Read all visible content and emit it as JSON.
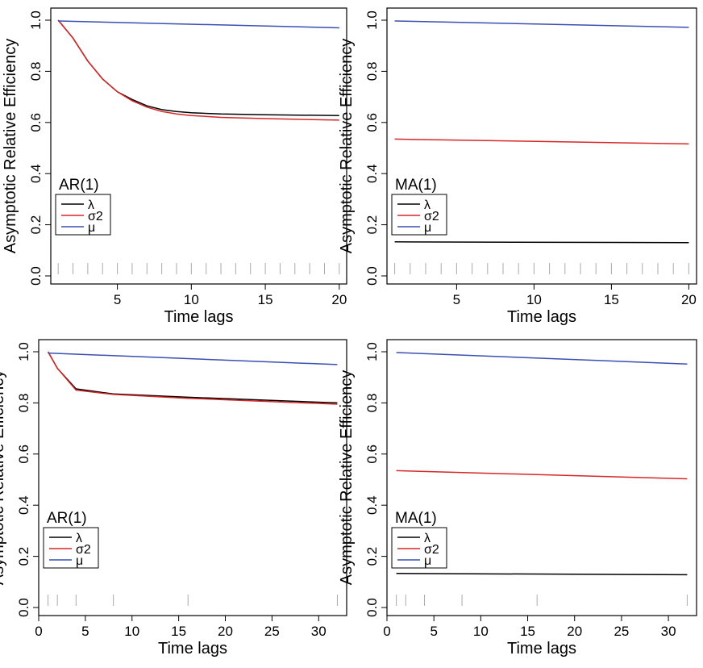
{
  "chart_data": [
    {
      "type": "line",
      "panel_label": "AR(1)",
      "xlabel": "Time lags",
      "ylabel": "Asymptotic Relative Efficiency",
      "xlim": [
        0.5,
        20.5
      ],
      "ylim": [
        0,
        1
      ],
      "xticks": [
        5,
        10,
        15,
        20
      ],
      "yticks": [
        0.0,
        0.2,
        0.4,
        0.6,
        0.8,
        1.0
      ],
      "ytick_labels": [
        "0.0",
        "0.2",
        "0.4",
        "0.6",
        "0.8",
        "1.0"
      ],
      "legend_position": "left",
      "rug": [
        1,
        2,
        3,
        4,
        5,
        6,
        7,
        8,
        9,
        10,
        11,
        12,
        13,
        14,
        15,
        16,
        17,
        18,
        19,
        20
      ],
      "series": [
        {
          "name": "λ",
          "color": "#000000",
          "x": [
            1,
            2,
            3,
            4,
            5,
            6,
            7,
            8,
            9,
            10,
            12,
            15,
            20
          ],
          "y": [
            1.0,
            0.93,
            0.84,
            0.77,
            0.72,
            0.69,
            0.665,
            0.65,
            0.643,
            0.638,
            0.633,
            0.63,
            0.627
          ]
        },
        {
          "name": "σ2",
          "color": "#d62728",
          "x": [
            1,
            2,
            3,
            4,
            5,
            6,
            7,
            8,
            9,
            10,
            12,
            15,
            20
          ],
          "y": [
            1.0,
            0.93,
            0.84,
            0.77,
            0.72,
            0.685,
            0.66,
            0.643,
            0.633,
            0.627,
            0.62,
            0.615,
            0.609
          ]
        },
        {
          "name": "μ",
          "color": "#3a4fb0",
          "x": [
            1,
            20
          ],
          "y": [
            0.997,
            0.97
          ]
        }
      ]
    },
    {
      "type": "line",
      "panel_label": "MA(1)",
      "xlabel": "Time lags",
      "ylabel": "Asymptotic Relative Efficiency",
      "xlim": [
        0.5,
        20.5
      ],
      "ylim": [
        0,
        1
      ],
      "xticks": [
        5,
        10,
        15,
        20
      ],
      "yticks": [
        0.0,
        0.2,
        0.4,
        0.6,
        0.8,
        1.0
      ],
      "ytick_labels": [
        "0.0",
        "0.2",
        "0.4",
        "0.6",
        "0.8",
        "1.0"
      ],
      "legend_position": "left",
      "rug": [
        1,
        2,
        3,
        4,
        5,
        6,
        7,
        8,
        9,
        10,
        11,
        12,
        13,
        14,
        15,
        16,
        17,
        18,
        19,
        20
      ],
      "series": [
        {
          "name": "λ",
          "color": "#000000",
          "x": [
            1,
            20
          ],
          "y": [
            0.133,
            0.13
          ]
        },
        {
          "name": "σ2",
          "color": "#d62728",
          "x": [
            1,
            20
          ],
          "y": [
            0.535,
            0.516
          ]
        },
        {
          "name": "μ",
          "color": "#3a4fb0",
          "x": [
            1,
            20
          ],
          "y": [
            0.997,
            0.972
          ]
        }
      ]
    },
    {
      "type": "line",
      "panel_label": "AR(1)",
      "xlabel": "Time lags",
      "ylabel": "Asymptotic Relative Efficiency",
      "xlim": [
        0,
        33
      ],
      "ylim": [
        0,
        1
      ],
      "xticks": [
        0,
        5,
        10,
        15,
        20,
        25,
        30
      ],
      "yticks": [
        0.0,
        0.2,
        0.4,
        0.6,
        0.8,
        1.0
      ],
      "ytick_labels": [
        "0.0",
        "0.2",
        "0.4",
        "0.6",
        "0.8",
        "1.0"
      ],
      "legend_position": "left",
      "rug": [
        1,
        2,
        4,
        8,
        16,
        32
      ],
      "series": [
        {
          "name": "λ",
          "color": "#000000",
          "x": [
            1,
            2,
            4,
            8,
            16,
            32
          ],
          "y": [
            1.0,
            0.935,
            0.855,
            0.835,
            0.822,
            0.8
          ]
        },
        {
          "name": "σ2",
          "color": "#d62728",
          "x": [
            1,
            2,
            4,
            8,
            16,
            32
          ],
          "y": [
            1.0,
            0.935,
            0.85,
            0.833,
            0.818,
            0.795
          ]
        },
        {
          "name": "μ",
          "color": "#3a4fb0",
          "x": [
            1,
            32
          ],
          "y": [
            0.995,
            0.95
          ]
        }
      ]
    },
    {
      "type": "line",
      "panel_label": "MA(1)",
      "xlabel": "Time lags",
      "ylabel": "Asymptotic Relative Efficiency",
      "xlim": [
        0,
        33
      ],
      "ylim": [
        0,
        1
      ],
      "xticks": [
        0,
        5,
        10,
        15,
        20,
        25,
        30
      ],
      "yticks": [
        0.0,
        0.2,
        0.4,
        0.6,
        0.8,
        1.0
      ],
      "ytick_labels": [
        "0.0",
        "0.2",
        "0.4",
        "0.6",
        "0.8",
        "1.0"
      ],
      "legend_position": "left",
      "rug": [
        1,
        2,
        4,
        8,
        16,
        32
      ],
      "series": [
        {
          "name": "λ",
          "color": "#000000",
          "x": [
            1,
            32
          ],
          "y": [
            0.133,
            0.128
          ]
        },
        {
          "name": "σ2",
          "color": "#d62728",
          "x": [
            1,
            32
          ],
          "y": [
            0.535,
            0.503
          ]
        },
        {
          "name": "μ",
          "color": "#3a4fb0",
          "x": [
            1,
            32
          ],
          "y": [
            0.997,
            0.952
          ]
        }
      ]
    }
  ]
}
